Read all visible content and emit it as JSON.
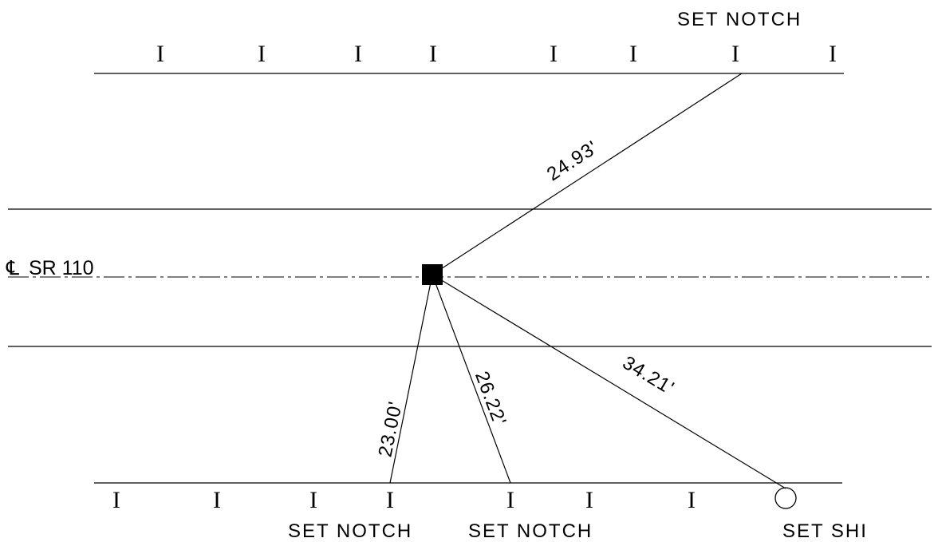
{
  "labels": {
    "top_right": "SET NOTCH",
    "bottom_1": "SET NOTCH",
    "bottom_2": "SET NOTCH",
    "bottom_3": "SET SHI"
  },
  "centerline": {
    "symbol": "℄",
    "name": "SR 110"
  },
  "distances": {
    "top": "24.93'",
    "bottom_left": "23.00'",
    "bottom_mid": "26.22'",
    "bottom_right": "34.21'"
  },
  "tick_glyph": "I"
}
